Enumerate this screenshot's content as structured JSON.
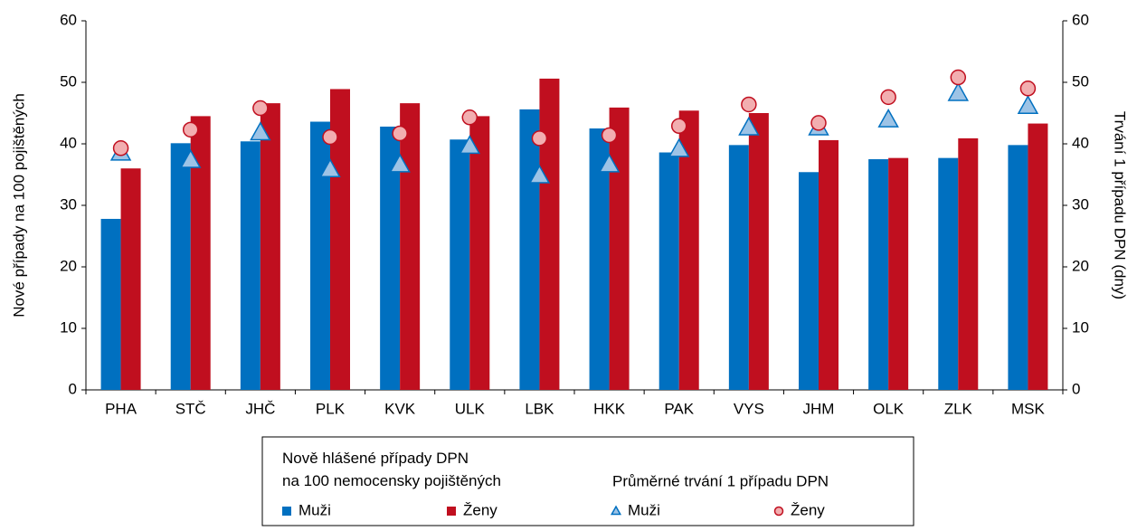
{
  "chart_data": {
    "type": "bar",
    "categories": [
      "PHA",
      "STČ",
      "JHČ",
      "PLK",
      "KVK",
      "ULK",
      "LBK",
      "HKK",
      "PAK",
      "VYS",
      "JHM",
      "OLK",
      "ZLK",
      "MSK"
    ],
    "y_label": "Nové případy na 100 pojištěných",
    "y2_label": "Trvání 1 případu DPN  (dny)",
    "ylim": [
      0,
      60
    ],
    "yticks": [
      0,
      10,
      20,
      30,
      40,
      50,
      60
    ],
    "y2lim": [
      0,
      60
    ],
    "y2ticks": [
      0,
      10,
      20,
      30,
      40,
      50,
      60
    ],
    "legend_titles": [
      "Nově hlášené případy DPN\nna 100 nemocensky pojištěných",
      "Průměrné trvání 1 případu DPN"
    ],
    "series": [
      {
        "name": "Muži",
        "color": "#0070c0",
        "mark": "bar",
        "values": [
          27.8,
          40.1,
          40.4,
          43.6,
          42.8,
          40.7,
          45.6,
          42.5,
          38.6,
          39.8,
          35.4,
          37.5,
          37.7,
          39.8
        ]
      },
      {
        "name": "Ženy",
        "color": "#c00f1f",
        "mark": "bar",
        "values": [
          36.0,
          44.5,
          46.6,
          48.9,
          46.6,
          44.5,
          50.6,
          45.9,
          45.4,
          45.0,
          40.6,
          37.7,
          40.9,
          43.3
        ]
      },
      {
        "name": "Muži",
        "color": "#9dc3e6",
        "mark": "triangle",
        "axis": "y2",
        "values": [
          38.5,
          37.3,
          41.8,
          35.8,
          36.6,
          39.6,
          34.8,
          36.6,
          39.1,
          42.6,
          42.6,
          43.9,
          48.2,
          46.1
        ]
      },
      {
        "name": "Ženy",
        "color": "#f2aeb0",
        "mark": "circle",
        "axis": "y2",
        "values": [
          39.3,
          42.3,
          45.8,
          41.1,
          41.7,
          44.3,
          40.9,
          41.4,
          42.9,
          46.4,
          43.4,
          47.6,
          50.8,
          49.0
        ]
      }
    ]
  }
}
